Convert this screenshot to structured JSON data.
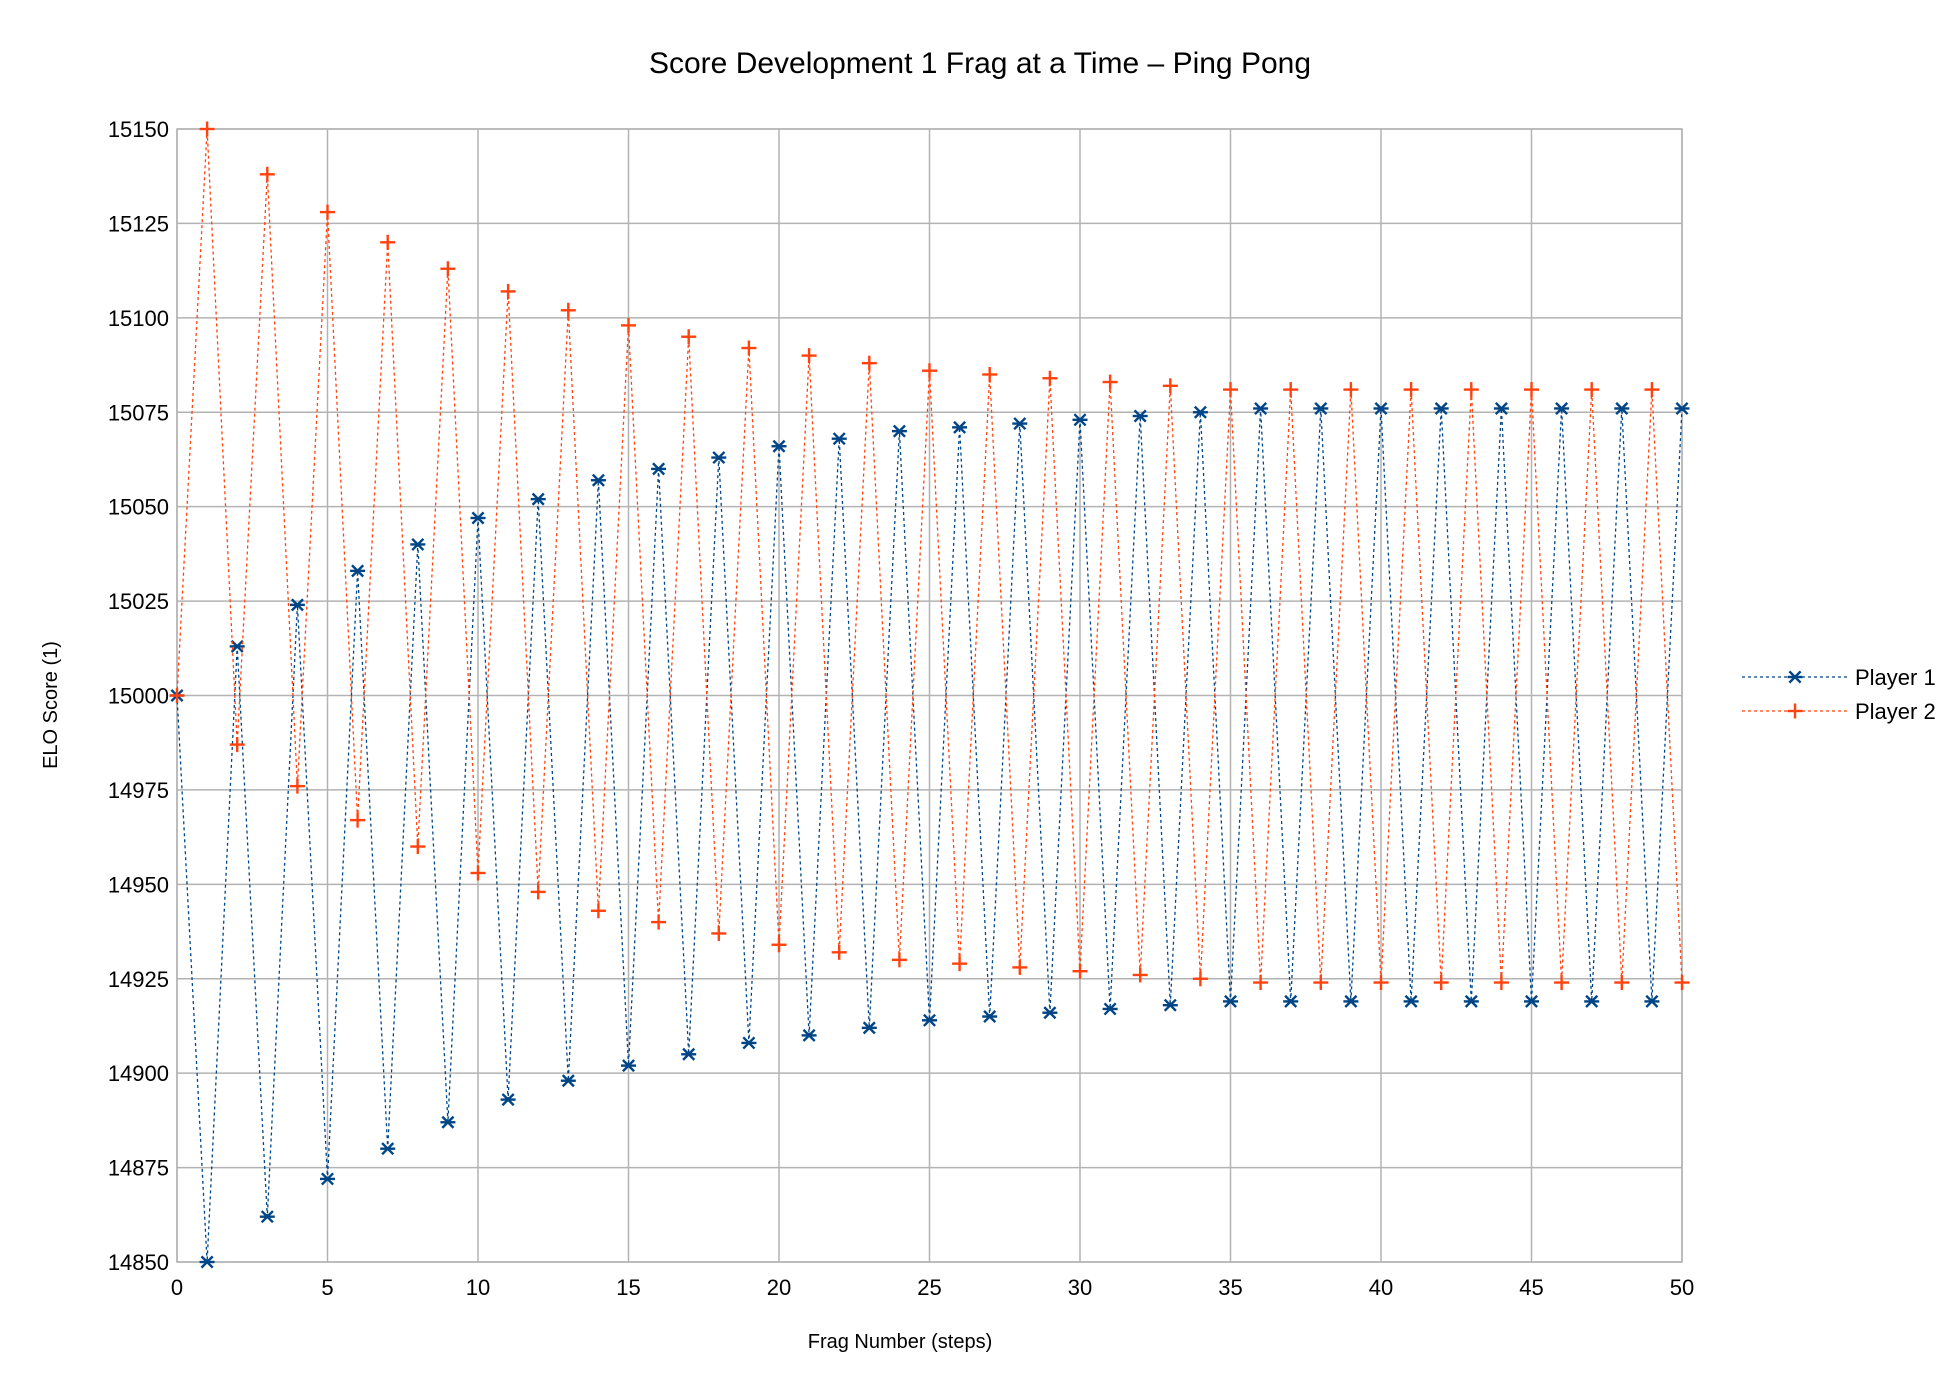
{
  "chart_data": {
    "type": "line",
    "title": "Score Development 1 Frag at a Time – Ping Pong",
    "xlabel": "Frag Number (steps)",
    "ylabel": "ELO Score (1)",
    "xlim": [
      0,
      50
    ],
    "ylim": [
      14850,
      15150
    ],
    "x_ticks": [
      0,
      5,
      10,
      15,
      20,
      25,
      30,
      35,
      40,
      45,
      50
    ],
    "y_ticks": [
      14850,
      14875,
      14900,
      14925,
      14950,
      14975,
      15000,
      15025,
      15050,
      15075,
      15100,
      15125,
      15150
    ],
    "grid": true,
    "legend_position": "right",
    "x": [
      0,
      1,
      2,
      3,
      4,
      5,
      6,
      7,
      8,
      9,
      10,
      11,
      12,
      13,
      14,
      15,
      16,
      17,
      18,
      19,
      20,
      21,
      22,
      23,
      24,
      25,
      26,
      27,
      28,
      29,
      30,
      31,
      32,
      33,
      34,
      35,
      36,
      37,
      38,
      39,
      40,
      41,
      42,
      43,
      44,
      45,
      46,
      47,
      48,
      49,
      50
    ],
    "series": [
      {
        "name": "Player 1",
        "color": "#004586",
        "marker": "asterisk",
        "values": [
          15000,
          14850,
          15013,
          14862,
          15024,
          14872,
          15033,
          14880,
          15040,
          14887,
          15047,
          14893,
          15052,
          14898,
          15057,
          14902,
          15060,
          14905,
          15063,
          14908,
          15066,
          14910,
          15068,
          14912,
          15070,
          14914,
          15071,
          14915,
          15072,
          14916,
          15073,
          14917,
          15074,
          14918,
          15075,
          14919,
          15076,
          14919,
          15076,
          14919,
          15076,
          14919,
          15076,
          14919,
          15076,
          14919,
          15076,
          14919,
          15076,
          14919,
          15076
        ]
      },
      {
        "name": "Player 2",
        "color": "#ff420e",
        "marker": "plus",
        "values": [
          15000,
          15150,
          14987,
          15138,
          14976,
          15128,
          14967,
          15120,
          14960,
          15113,
          14953,
          15107,
          14948,
          15102,
          14943,
          15098,
          14940,
          15095,
          14937,
          15092,
          14934,
          15090,
          14932,
          15088,
          14930,
          15086,
          14929,
          15085,
          14928,
          15084,
          14927,
          15083,
          14926,
          15082,
          14925,
          15081,
          14924,
          15081,
          14924,
          15081,
          14924,
          15081,
          14924,
          15081,
          14924,
          15081,
          14924,
          15081,
          14924,
          15081,
          14924
        ]
      }
    ]
  }
}
